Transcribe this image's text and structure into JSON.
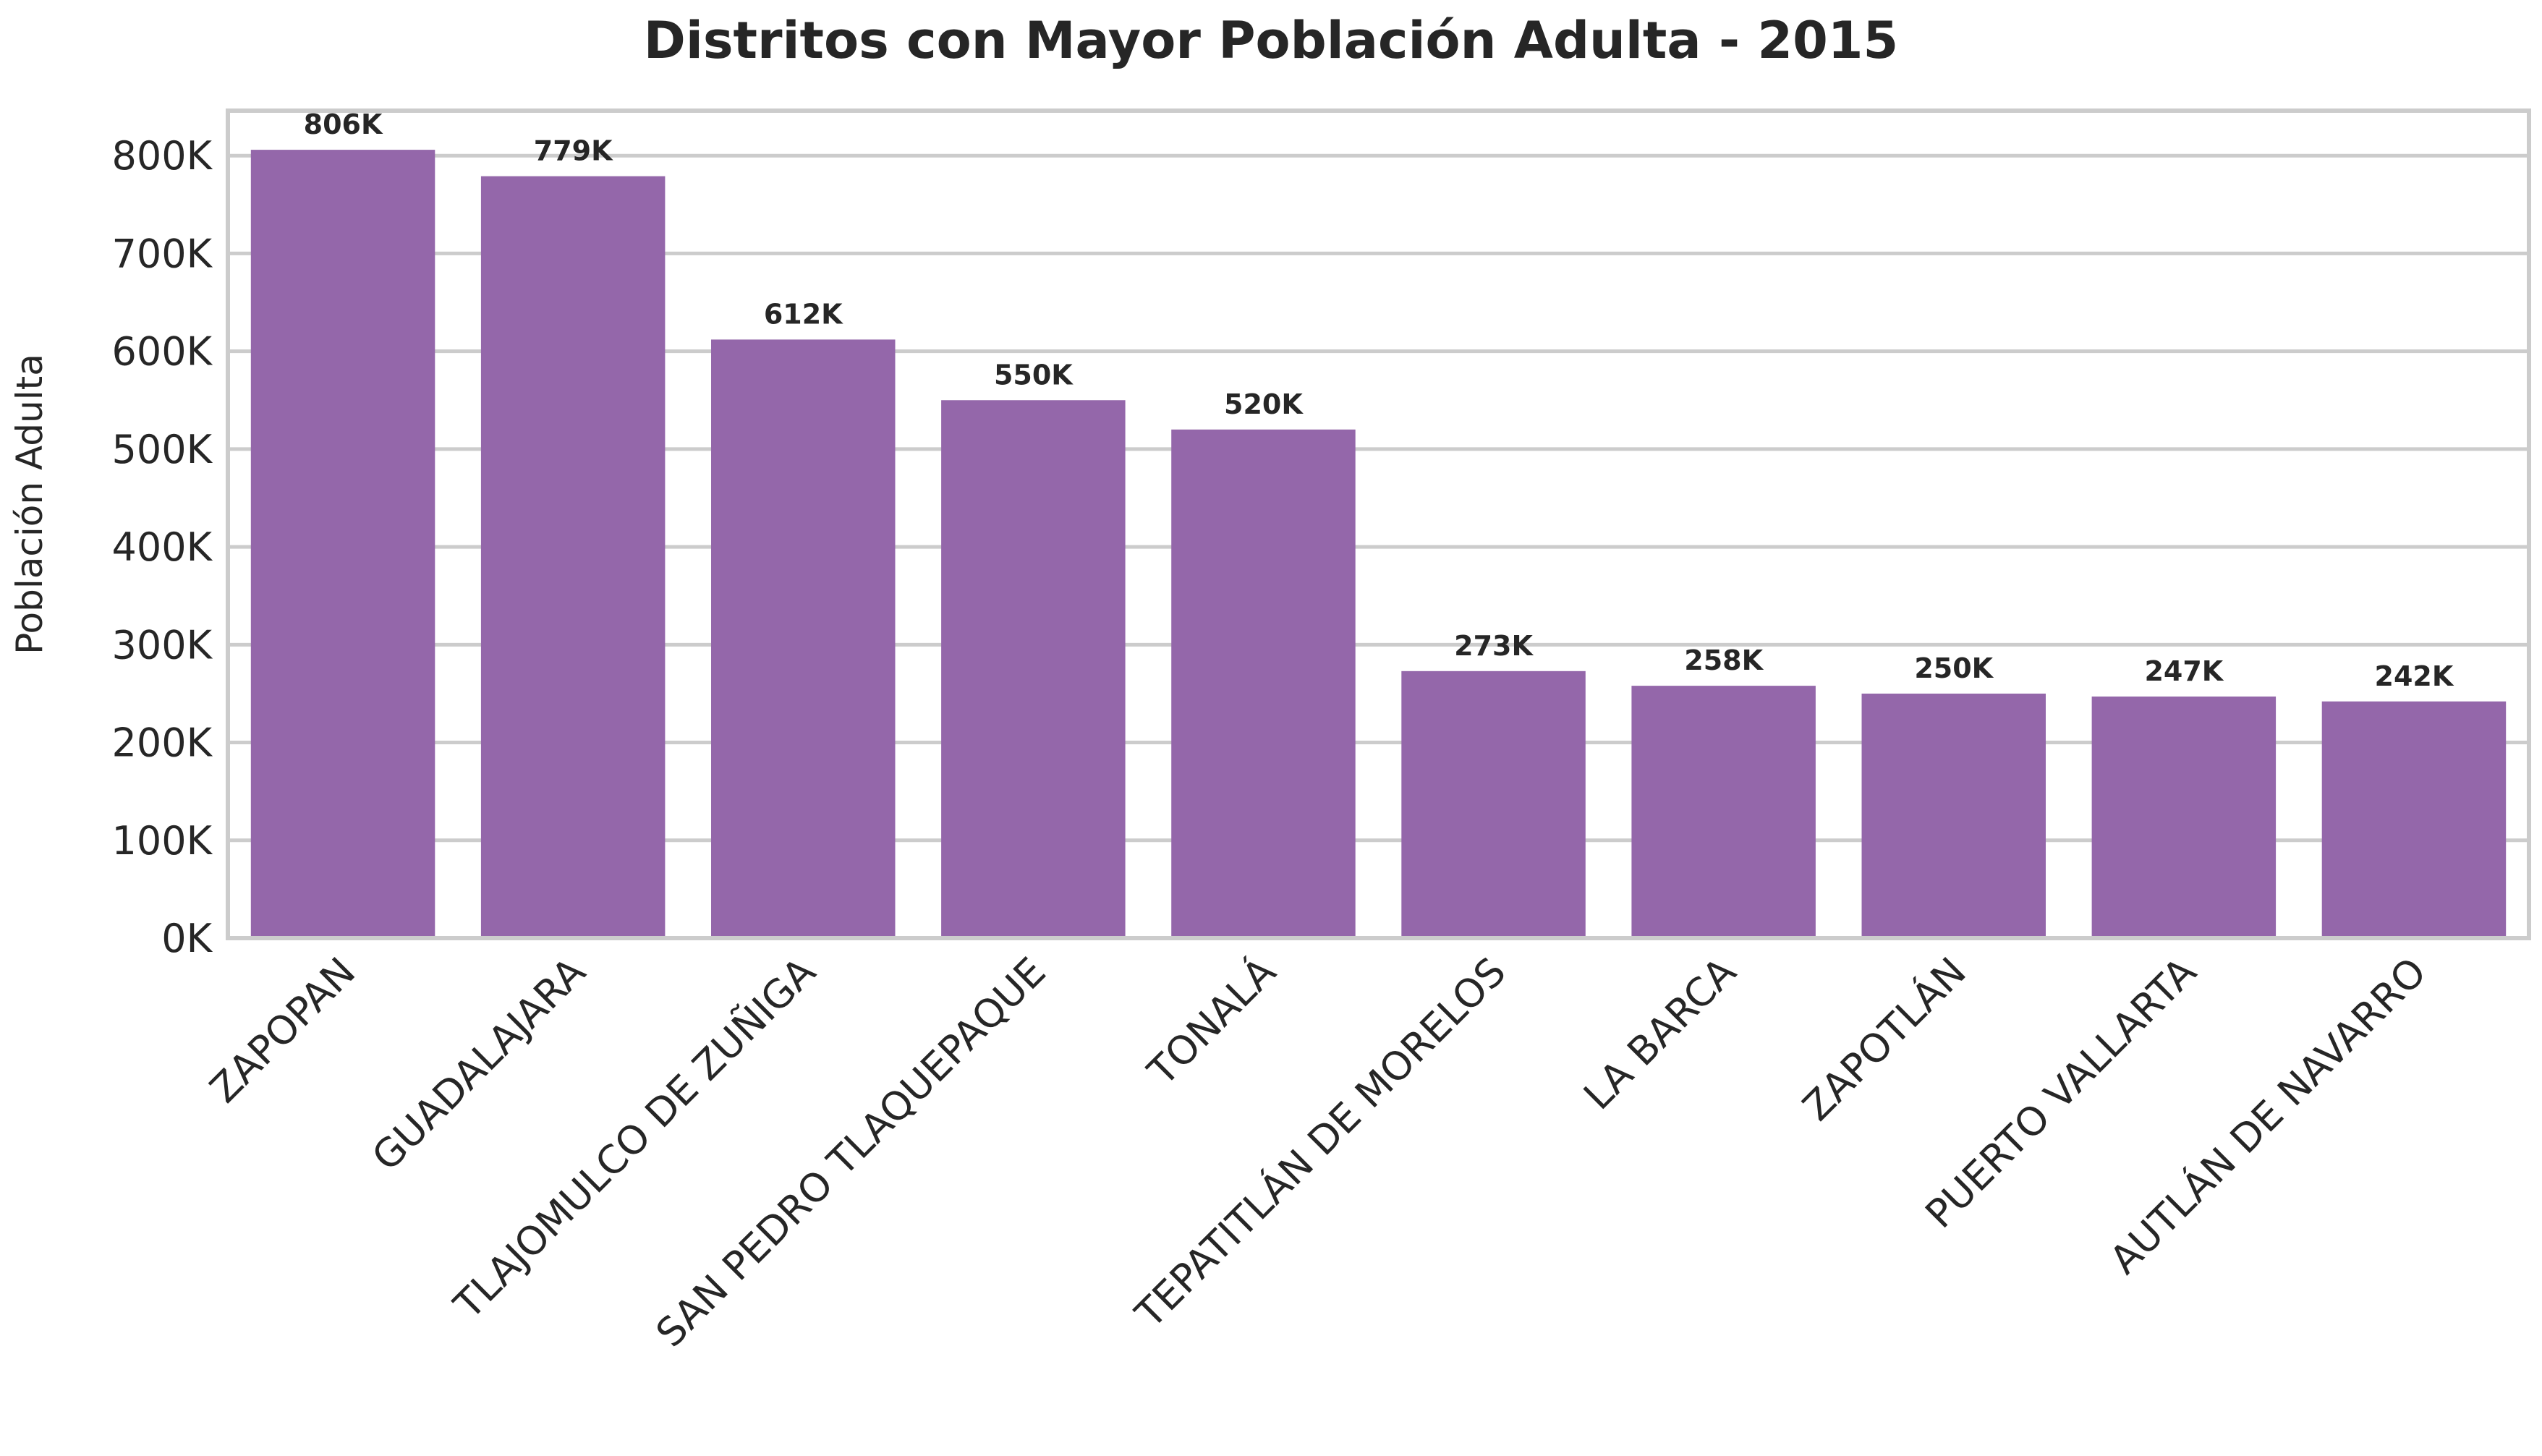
{
  "chart_data": {
    "type": "bar",
    "title": "Distritos con Mayor Población Adulta - 2015",
    "xlabel": "",
    "ylabel": "Población Adulta",
    "categories": [
      "ZAPOPAN",
      "GUADALAJARA",
      "TLAJOMULCO DE ZUÑIGA",
      "SAN PEDRO TLAQUEPAQUE",
      "TONALÁ",
      "TEPATITLÁN DE MORELOS",
      "LA BARCA",
      "ZAPOTLÁN",
      "PUERTO VALLARTA",
      "AUTLÁN DE NAVARRO"
    ],
    "values": [
      806000,
      779000,
      612000,
      550000,
      520000,
      273000,
      258000,
      250000,
      247000,
      242000
    ],
    "data_labels": [
      "806K",
      "779K",
      "612K",
      "550K",
      "520K",
      "273K",
      "258K",
      "250K",
      "247K",
      "242K"
    ],
    "yticks": [
      0,
      100000,
      200000,
      300000,
      400000,
      500000,
      600000,
      700000,
      800000
    ],
    "ytick_labels": [
      "0K",
      "100K",
      "200K",
      "300K",
      "400K",
      "500K",
      "600K",
      "700K",
      "800K"
    ],
    "ylim": [
      0,
      846000
    ],
    "grid": true,
    "legend": "none",
    "colors": {
      "bar": "#9467aa",
      "grid": "#cccccc",
      "frame": "#cccccc",
      "text": "#262626",
      "background": "#ffffff"
    }
  }
}
